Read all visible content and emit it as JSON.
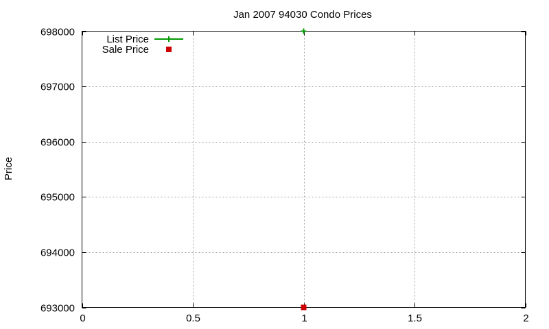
{
  "chart_data": {
    "type": "scatter",
    "title": "Jan 2007 94030 Condo Prices",
    "xlabel": "",
    "ylabel": "Price",
    "xlim": [
      0,
      2
    ],
    "ylim": [
      693000,
      698000
    ],
    "x_ticks": [
      0,
      0.5,
      1,
      1.5,
      2
    ],
    "x_tick_labels": [
      "0",
      "0.5",
      "1",
      "1.5",
      "2"
    ],
    "y_ticks": [
      693000,
      694000,
      695000,
      696000,
      697000,
      698000
    ],
    "y_tick_labels": [
      "693000",
      "694000",
      "695000",
      "696000",
      "697000",
      "698000"
    ],
    "grid": true,
    "legend_position": "top-left",
    "series": [
      {
        "name": "List Price",
        "color": "#009900",
        "marker": "plus",
        "x": [
          1
        ],
        "values": [
          698000
        ]
      },
      {
        "name": "Sale Price",
        "color": "#cc0000",
        "marker": "square",
        "x": [
          1
        ],
        "values": [
          693000
        ]
      }
    ]
  }
}
